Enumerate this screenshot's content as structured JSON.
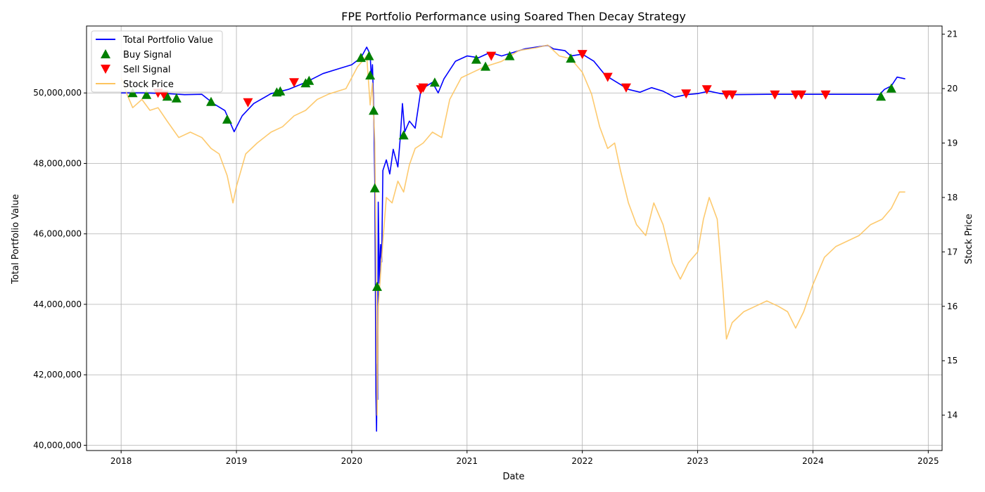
{
  "chart_data": {
    "type": "line",
    "title": "FPE Portfolio Performance using Soared Then Decay Strategy",
    "xlabel": "Date",
    "ylabel_left": "Total Portfolio Value",
    "ylabel_right": "Stock Price",
    "xlim": [
      2017.7,
      2025.12
    ],
    "ylim_left": [
      39850000,
      51900000
    ],
    "ylim_right": [
      13.35,
      21.15
    ],
    "x_ticks": [
      2018,
      2019,
      2020,
      2021,
      2022,
      2023,
      2024,
      2025
    ],
    "y_ticks_left": [
      40000000,
      42000000,
      44000000,
      46000000,
      48000000,
      50000000
    ],
    "y_tick_labels_left": [
      "40,000,000",
      "42,000,000",
      "44,000,000",
      "46,000,000",
      "48,000,000",
      "50,000,000"
    ],
    "y_ticks_right": [
      14,
      15,
      16,
      17,
      18,
      19,
      20,
      21
    ],
    "grid": true,
    "legend_position": "top-left",
    "colors": {
      "portfolio": "#0000ff",
      "stock": "#fdc45f",
      "buy": "#008000",
      "sell": "#ff0000"
    },
    "series": [
      {
        "name": "Total Portfolio Value",
        "axis": "left",
        "points": [
          [
            2018.0,
            50000000
          ],
          [
            2018.2,
            50000000
          ],
          [
            2018.4,
            49980000
          ],
          [
            2018.55,
            49950000
          ],
          [
            2018.7,
            49960000
          ],
          [
            2018.8,
            49700000
          ],
          [
            2018.9,
            49500000
          ],
          [
            2018.98,
            48900000
          ],
          [
            2019.05,
            49350000
          ],
          [
            2019.15,
            49700000
          ],
          [
            2019.3,
            49980000
          ],
          [
            2019.45,
            50100000
          ],
          [
            2019.6,
            50300000
          ],
          [
            2019.75,
            50550000
          ],
          [
            2019.9,
            50700000
          ],
          [
            2020.0,
            50800000
          ],
          [
            2020.08,
            51000000
          ],
          [
            2020.13,
            51300000
          ],
          [
            2020.16,
            51100000
          ],
          [
            2020.17,
            50400000
          ],
          [
            2020.18,
            50800000
          ],
          [
            2020.19,
            49600000
          ],
          [
            2020.2,
            47500000
          ],
          [
            2020.205,
            44800000
          ],
          [
            2020.21,
            41500000
          ],
          [
            2020.215,
            40400000
          ],
          [
            2020.22,
            42300000
          ],
          [
            2020.225,
            41300000
          ],
          [
            2020.23,
            46900000
          ],
          [
            2020.24,
            44600000
          ],
          [
            2020.25,
            45700000
          ],
          [
            2020.26,
            45200000
          ],
          [
            2020.27,
            47800000
          ],
          [
            2020.3,
            48100000
          ],
          [
            2020.33,
            47700000
          ],
          [
            2020.36,
            48400000
          ],
          [
            2020.4,
            47900000
          ],
          [
            2020.42,
            48700000
          ],
          [
            2020.44,
            49700000
          ],
          [
            2020.46,
            48900000
          ],
          [
            2020.5,
            49200000
          ],
          [
            2020.55,
            49000000
          ],
          [
            2020.6,
            50100000
          ],
          [
            2020.65,
            50200000
          ],
          [
            2020.7,
            50300000
          ],
          [
            2020.75,
            50000000
          ],
          [
            2020.8,
            50400000
          ],
          [
            2020.9,
            50900000
          ],
          [
            2021.0,
            51050000
          ],
          [
            2021.1,
            51000000
          ],
          [
            2021.2,
            51150000
          ],
          [
            2021.3,
            51050000
          ],
          [
            2021.4,
            51150000
          ],
          [
            2021.5,
            51250000
          ],
          [
            2021.6,
            51300000
          ],
          [
            2021.7,
            51350000
          ],
          [
            2021.75,
            51250000
          ],
          [
            2021.85,
            51200000
          ],
          [
            2021.9,
            51050000
          ],
          [
            2022.0,
            51100000
          ],
          [
            2022.1,
            50900000
          ],
          [
            2022.2,
            50500000
          ],
          [
            2022.3,
            50300000
          ],
          [
            2022.4,
            50100000
          ],
          [
            2022.5,
            50020000
          ],
          [
            2022.6,
            50150000
          ],
          [
            2022.7,
            50050000
          ],
          [
            2022.8,
            49880000
          ],
          [
            2022.9,
            49950000
          ],
          [
            2023.0,
            49980000
          ],
          [
            2023.1,
            50050000
          ],
          [
            2023.2,
            49980000
          ],
          [
            2023.3,
            49950000
          ],
          [
            2023.6,
            49960000
          ],
          [
            2023.9,
            49960000
          ],
          [
            2024.2,
            49960000
          ],
          [
            2024.58,
            49960000
          ],
          [
            2024.62,
            50100000
          ],
          [
            2024.68,
            50200000
          ],
          [
            2024.73,
            50450000
          ],
          [
            2024.8,
            50400000
          ]
        ]
      },
      {
        "name": "Stock Price",
        "axis": "right",
        "points": [
          [
            2018.0,
            20.2
          ],
          [
            2018.05,
            19.9
          ],
          [
            2018.1,
            19.65
          ],
          [
            2018.18,
            19.8
          ],
          [
            2018.25,
            19.6
          ],
          [
            2018.32,
            19.65
          ],
          [
            2018.4,
            19.4
          ],
          [
            2018.5,
            19.1
          ],
          [
            2018.6,
            19.2
          ],
          [
            2018.7,
            19.1
          ],
          [
            2018.78,
            18.9
          ],
          [
            2018.85,
            18.8
          ],
          [
            2018.92,
            18.4
          ],
          [
            2018.97,
            17.9
          ],
          [
            2019.0,
            18.2
          ],
          [
            2019.08,
            18.8
          ],
          [
            2019.18,
            19.0
          ],
          [
            2019.3,
            19.2
          ],
          [
            2019.4,
            19.3
          ],
          [
            2019.5,
            19.5
          ],
          [
            2019.6,
            19.6
          ],
          [
            2019.7,
            19.8
          ],
          [
            2019.8,
            19.9
          ],
          [
            2019.95,
            20.0
          ],
          [
            2020.05,
            20.4
          ],
          [
            2020.13,
            20.6
          ],
          [
            2020.16,
            19.7
          ],
          [
            2020.18,
            20.1
          ],
          [
            2020.2,
            19.0
          ],
          [
            2020.21,
            17.1
          ],
          [
            2020.22,
            14.0
          ],
          [
            2020.23,
            16.0
          ],
          [
            2020.25,
            16.6
          ],
          [
            2020.27,
            17.2
          ],
          [
            2020.3,
            18.0
          ],
          [
            2020.35,
            17.9
          ],
          [
            2020.4,
            18.3
          ],
          [
            2020.45,
            18.1
          ],
          [
            2020.5,
            18.6
          ],
          [
            2020.55,
            18.9
          ],
          [
            2020.62,
            19.0
          ],
          [
            2020.7,
            19.2
          ],
          [
            2020.78,
            19.1
          ],
          [
            2020.85,
            19.8
          ],
          [
            2020.95,
            20.2
          ],
          [
            2021.05,
            20.3
          ],
          [
            2021.15,
            20.4
          ],
          [
            2021.3,
            20.5
          ],
          [
            2021.45,
            20.7
          ],
          [
            2021.6,
            20.75
          ],
          [
            2021.7,
            20.8
          ],
          [
            2021.8,
            20.6
          ],
          [
            2021.9,
            20.55
          ],
          [
            2022.0,
            20.3
          ],
          [
            2022.08,
            19.9
          ],
          [
            2022.15,
            19.3
          ],
          [
            2022.22,
            18.9
          ],
          [
            2022.28,
            19.0
          ],
          [
            2022.33,
            18.5
          ],
          [
            2022.4,
            17.9
          ],
          [
            2022.47,
            17.5
          ],
          [
            2022.55,
            17.3
          ],
          [
            2022.62,
            17.9
          ],
          [
            2022.7,
            17.5
          ],
          [
            2022.78,
            16.8
          ],
          [
            2022.85,
            16.5
          ],
          [
            2022.92,
            16.8
          ],
          [
            2023.0,
            17.0
          ],
          [
            2023.05,
            17.6
          ],
          [
            2023.1,
            18.0
          ],
          [
            2023.17,
            17.6
          ],
          [
            2023.22,
            16.3
          ],
          [
            2023.25,
            15.4
          ],
          [
            2023.3,
            15.7
          ],
          [
            2023.4,
            15.9
          ],
          [
            2023.5,
            16.0
          ],
          [
            2023.6,
            16.1
          ],
          [
            2023.7,
            16.0
          ],
          [
            2023.78,
            15.9
          ],
          [
            2023.85,
            15.6
          ],
          [
            2023.92,
            15.9
          ],
          [
            2024.0,
            16.4
          ],
          [
            2024.1,
            16.9
          ],
          [
            2024.2,
            17.1
          ],
          [
            2024.3,
            17.2
          ],
          [
            2024.4,
            17.3
          ],
          [
            2024.5,
            17.5
          ],
          [
            2024.6,
            17.6
          ],
          [
            2024.68,
            17.8
          ],
          [
            2024.75,
            18.1
          ],
          [
            2024.8,
            18.1
          ]
        ]
      },
      {
        "name": "Buy Signal",
        "axis": "left",
        "marker": "triangle-up",
        "points": [
          [
            2018.1,
            50000000
          ],
          [
            2018.22,
            49950000
          ],
          [
            2018.4,
            49900000
          ],
          [
            2018.48,
            49850000
          ],
          [
            2018.78,
            49750000
          ],
          [
            2018.92,
            49250000
          ],
          [
            2019.35,
            50020000
          ],
          [
            2019.38,
            50050000
          ],
          [
            2019.6,
            50280000
          ],
          [
            2019.63,
            50350000
          ],
          [
            2020.08,
            51000000
          ],
          [
            2020.15,
            51050000
          ],
          [
            2020.16,
            50500000
          ],
          [
            2020.19,
            49500000
          ],
          [
            2020.2,
            47300000
          ],
          [
            2020.22,
            44500000
          ],
          [
            2020.45,
            48800000
          ],
          [
            2020.72,
            50300000
          ],
          [
            2021.08,
            50950000
          ],
          [
            2021.16,
            50750000
          ],
          [
            2021.37,
            51050000
          ],
          [
            2021.9,
            50980000
          ],
          [
            2024.59,
            49900000
          ],
          [
            2024.68,
            50130000
          ]
        ]
      },
      {
        "name": "Sell Signal",
        "axis": "left",
        "marker": "triangle-down",
        "points": [
          [
            2018.32,
            50000000
          ],
          [
            2018.37,
            49950000
          ],
          [
            2019.1,
            49730000
          ],
          [
            2019.5,
            50300000
          ],
          [
            2020.6,
            50100000
          ],
          [
            2020.62,
            50150000
          ],
          [
            2021.21,
            51050000
          ],
          [
            2022.0,
            51100000
          ],
          [
            2022.22,
            50450000
          ],
          [
            2022.38,
            50150000
          ],
          [
            2022.9,
            49980000
          ],
          [
            2023.08,
            50100000
          ],
          [
            2023.25,
            49950000
          ],
          [
            2023.3,
            49950000
          ],
          [
            2023.67,
            49950000
          ],
          [
            2023.85,
            49950000
          ],
          [
            2023.9,
            49950000
          ],
          [
            2024.11,
            49950000
          ]
        ]
      }
    ]
  }
}
